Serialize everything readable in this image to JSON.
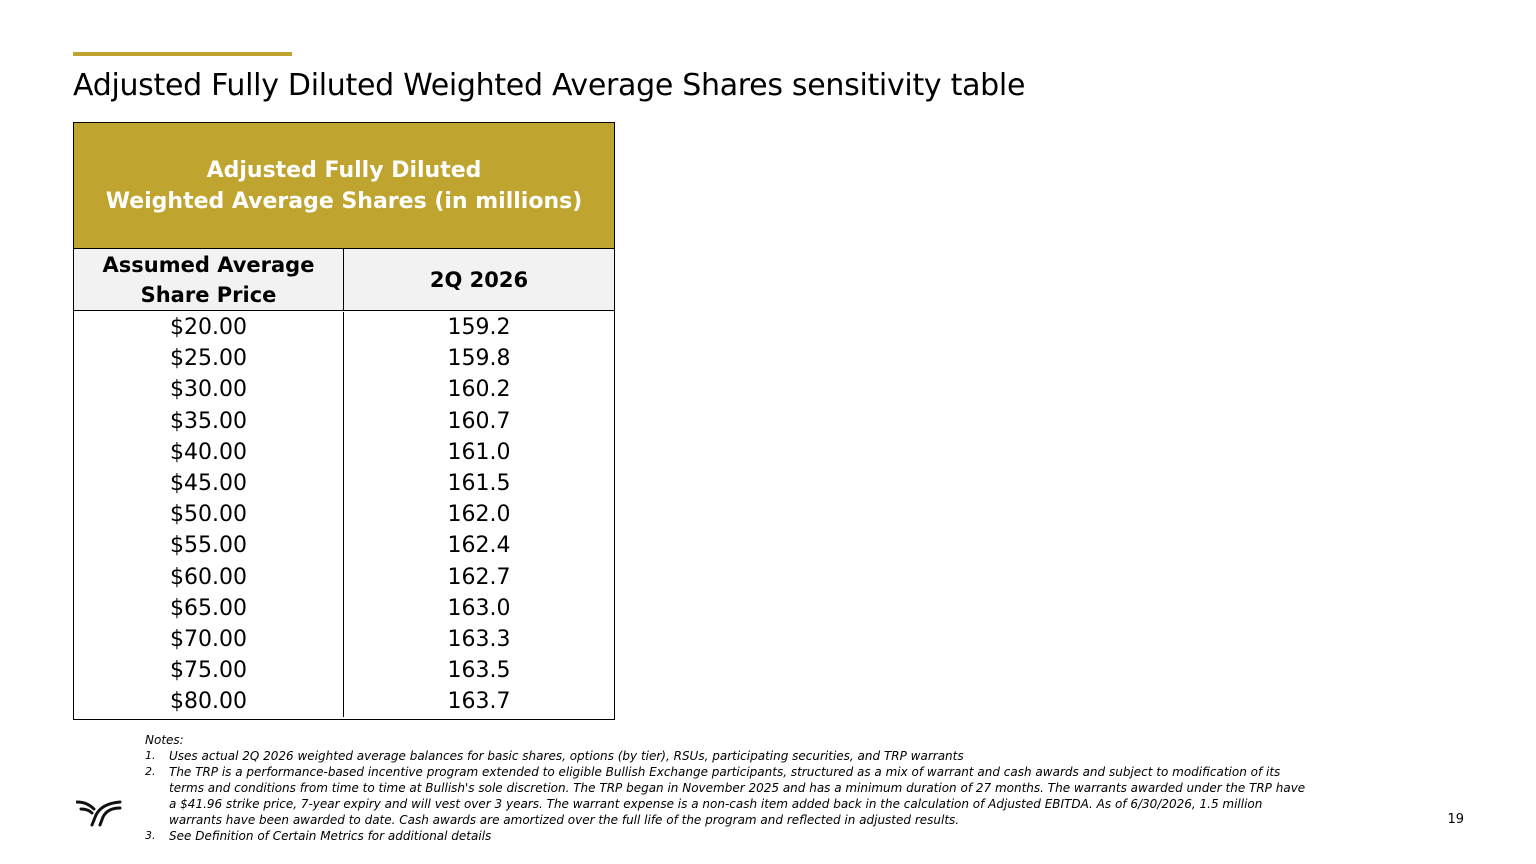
{
  "slide": {
    "title": "Adjusted Fully Diluted Weighted Average Shares sensitivity table",
    "page_number": "19",
    "accent_color": "#BFA52F"
  },
  "table": {
    "header_line1": "Adjusted Fully Diluted",
    "header_line2": "Weighted Average Shares (in millions)",
    "col1_line1": "Assumed Average",
    "col1_line2": "Share Price",
    "col2": "2Q 2026",
    "rows": [
      {
        "price": "$20.00",
        "shares": "159.2"
      },
      {
        "price": "$25.00",
        "shares": "159.8"
      },
      {
        "price": "$30.00",
        "shares": "160.2"
      },
      {
        "price": "$35.00",
        "shares": "160.7"
      },
      {
        "price": "$40.00",
        "shares": "161.0"
      },
      {
        "price": "$45.00",
        "shares": "161.5"
      },
      {
        "price": "$50.00",
        "shares": "162.0"
      },
      {
        "price": "$55.00",
        "shares": "162.4"
      },
      {
        "price": "$60.00",
        "shares": "162.7"
      },
      {
        "price": "$65.00",
        "shares": "163.0"
      },
      {
        "price": "$70.00",
        "shares": "163.3"
      },
      {
        "price": "$75.00",
        "shares": "163.5"
      },
      {
        "price": "$80.00",
        "shares": "163.7"
      }
    ]
  },
  "notes": {
    "label": "Notes:",
    "items": [
      {
        "num": "1.",
        "text": "Uses actual 2Q 2026 weighted average balances for basic shares, options (by tier), RSUs, participating securities, and TRP warrants"
      },
      {
        "num": "2.",
        "text": "The TRP is a performance-based incentive program extended to eligible Bullish Exchange participants, structured as a mix of warrant and cash awards and subject to modification of its terms and conditions from time to time at Bullish's sole discretion. The TRP began in November 2025 and has a minimum duration of 27 months. The warrants awarded under the TRP have a $41.96 strike price, 7-year expiry and will vest over 3 years. The warrant expense is a non-cash item added back in the calculation of Adjusted EBITDA. As of 6/30/2026, 1.5 million warrants have been awarded to date. Cash awards are amortized over the full life of the program and reflected in adjusted results."
      },
      {
        "num": "3.",
        "text": "See Definition of Certain Metrics for additional details"
      }
    ]
  },
  "logo": {
    "icon": "bull-logo-icon"
  }
}
